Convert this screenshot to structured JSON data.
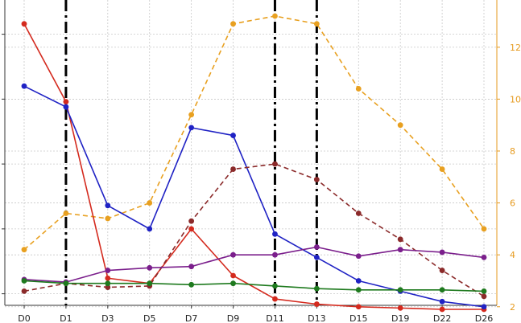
{
  "chart_data": {
    "type": "line",
    "title": "",
    "xlabel": "",
    "ylabel": "",
    "categories": [
      "D0",
      "D1",
      "D3",
      "D5",
      "D7",
      "D9",
      "D11",
      "D13",
      "D15",
      "D19",
      "D22",
      "D26"
    ],
    "right_axis": {
      "ylim": [
        1.9,
        13.2
      ],
      "ticks": [
        2,
        4,
        6,
        8,
        10,
        12
      ],
      "tick_labels": [
        "2",
        "4",
        "6",
        "8",
        "10",
        "12"
      ],
      "color": "#e69a1e"
    },
    "left_axis": {
      "ylim": [
        1.9,
        13.2
      ],
      "ticks": [
        2.5,
        5,
        7.5,
        10,
        12.5
      ],
      "tick_labels": [
        "",
        "",
        "",
        "",
        ""
      ]
    },
    "vertical_markers": [
      "D1",
      "D11",
      "D13"
    ],
    "grid": true,
    "legend": "none",
    "series": [
      {
        "color": "#e8a020",
        "style": "dashed",
        "axis": "right",
        "values": [
          4.2,
          5.6,
          5.4,
          6.0,
          9.4,
          12.9,
          13.2,
          12.9,
          10.4,
          9.0,
          7.3,
          5.0
        ]
      },
      {
        "color": "#d42a1e",
        "style": "solid",
        "axis": "left",
        "values": [
          12.9,
          9.9,
          3.1,
          2.9,
          5.0,
          3.2,
          2.3,
          2.1,
          2.0,
          1.95,
          1.9,
          1.9
        ]
      },
      {
        "color": "#1f22c4",
        "style": "solid",
        "axis": "left",
        "values": [
          10.5,
          9.7,
          5.9,
          5.0,
          8.9,
          8.6,
          4.8,
          3.9,
          3.0,
          2.6,
          2.2,
          2.0
        ]
      },
      {
        "color": "#8b2a2a",
        "style": "dashed",
        "axis": "right",
        "values": [
          2.6,
          2.9,
          2.75,
          2.8,
          5.3,
          7.3,
          7.5,
          6.9,
          5.6,
          4.6,
          3.4,
          2.4
        ]
      },
      {
        "color": "#7b1f8c",
        "style": "solid",
        "axis": "right",
        "values": [
          3.05,
          2.95,
          3.4,
          3.5,
          3.55,
          4.0,
          4.0,
          4.3,
          3.95,
          4.2,
          4.1,
          3.9
        ]
      },
      {
        "color": "#1e7a1e",
        "style": "solid",
        "axis": "right",
        "values": [
          3.0,
          2.9,
          2.9,
          2.9,
          2.85,
          2.9,
          2.8,
          2.7,
          2.65,
          2.65,
          2.65,
          2.6
        ]
      }
    ]
  }
}
